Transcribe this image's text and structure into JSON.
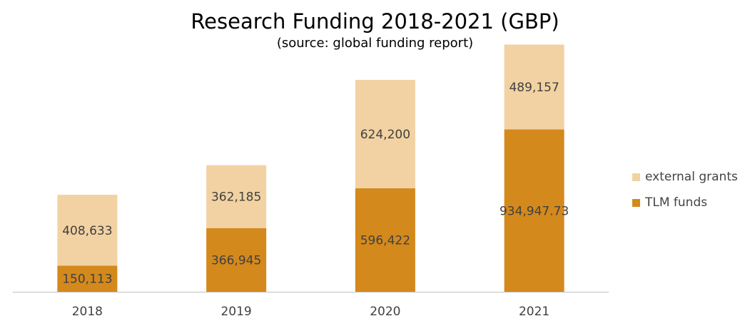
{
  "chart_data": {
    "type": "bar",
    "stacked": true,
    "title": "Research Funding 2018-2021 (GBP)",
    "subtitle": "(source: global funding report)",
    "categories": [
      "2018",
      "2019",
      "2020",
      "2021"
    ],
    "series": [
      {
        "name": "TLM funds",
        "color": "#d4891c",
        "values": [
          150113,
          366945,
          596422,
          934947.73
        ],
        "labels": [
          "150,113",
          "366,945",
          "596,422",
          "934,947.73"
        ]
      },
      {
        "name": "external grants",
        "color": "#f2d2a2",
        "values": [
          408633,
          362185,
          624200,
          489157
        ],
        "labels": [
          "408,633",
          "362,185",
          "624,200",
          "489,157"
        ]
      }
    ],
    "legend_order": [
      "external grants",
      "TLM funds"
    ],
    "legend_position": "right",
    "ylim": [
      0,
      1500000
    ],
    "y_axis_visible": false,
    "grid": false
  }
}
